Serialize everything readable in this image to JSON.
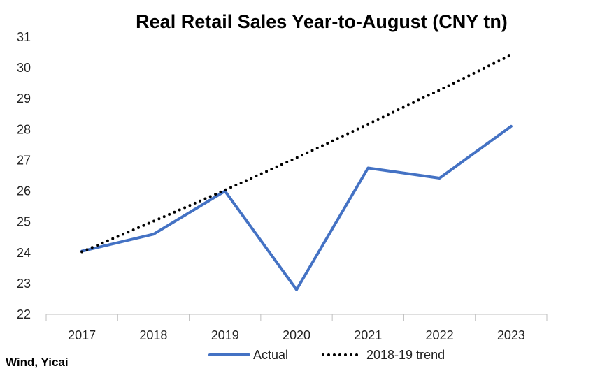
{
  "chart_data": {
    "type": "line",
    "title": "Real Retail Sales Year-to-August (CNY tn)",
    "categories": [
      "2017",
      "2018",
      "2019",
      "2020",
      "2021",
      "2022",
      "2023"
    ],
    "ylim": [
      22,
      31
    ],
    "yticks": [
      "22",
      "23",
      "24",
      "25",
      "26",
      "27",
      "28",
      "29",
      "30",
      "31"
    ],
    "grid": false,
    "legend_position": "bottom",
    "series": [
      {
        "name": "Actual",
        "style": "solid",
        "color": "#4472C4",
        "values": [
          24.05,
          24.6,
          26.0,
          22.8,
          26.75,
          26.42,
          28.1
        ]
      },
      {
        "name": "2018-19 trend",
        "style": "dotted",
        "color": "#000000",
        "values": [
          24.03,
          25.02,
          26.03,
          27.08,
          28.17,
          29.28,
          30.42
        ]
      }
    ],
    "source": "Wind, Yicai"
  }
}
